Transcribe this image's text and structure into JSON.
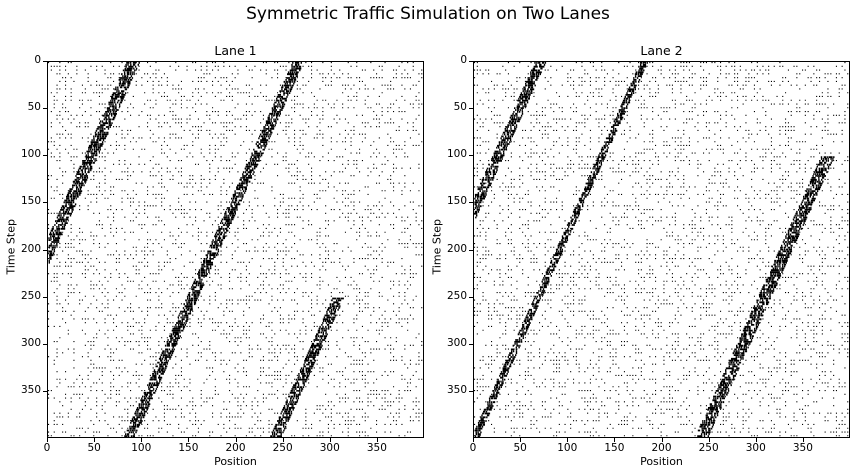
{
  "figure": {
    "title": "Symmetric Traffic Simulation on Two Lanes"
  },
  "chart_data": [
    {
      "type": "heatmap",
      "title": "Lane 1",
      "xlabel": "Position",
      "ylabel": "Time Step",
      "xlim": [
        0,
        400
      ],
      "ylim": [
        0,
        400
      ],
      "y_inverted": true,
      "colormap": [
        "#ffffff",
        "#000000"
      ],
      "xticks": [
        0,
        50,
        100,
        150,
        200,
        250,
        300,
        350
      ],
      "yticks": [
        0,
        50,
        100,
        150,
        200,
        250,
        300,
        350
      ],
      "jam_bands": [
        {
          "start_pos": 90,
          "slope": -0.45,
          "time_range": [
            0,
            300
          ],
          "width": 14
        },
        {
          "start_pos": 265,
          "slope": -0.45,
          "time_range": [
            0,
            400
          ],
          "width": 12
        },
        {
          "start_pos": 420,
          "slope": -0.45,
          "time_range": [
            250,
            400
          ],
          "width": 12
        }
      ]
    },
    {
      "type": "heatmap",
      "title": "Lane 2",
      "xlabel": "Position",
      "ylabel": "Time Step",
      "xlim": [
        0,
        400
      ],
      "ylim": [
        0,
        400
      ],
      "y_inverted": true,
      "colormap": [
        "#ffffff",
        "#000000"
      ],
      "xticks": [
        0,
        50,
        100,
        150,
        200,
        250,
        300,
        350
      ],
      "yticks": [
        0,
        50,
        100,
        150,
        200,
        250,
        300,
        350
      ],
      "jam_bands": [
        {
          "start_pos": 70,
          "slope": -0.45,
          "time_range": [
            0,
            400
          ],
          "width": 12
        },
        {
          "start_pos": 180,
          "slope": -0.45,
          "time_range": [
            0,
            400
          ],
          "width": 8
        },
        {
          "start_pos": 420,
          "slope": -0.45,
          "time_range": [
            100,
            400
          ],
          "width": 14
        }
      ]
    }
  ]
}
